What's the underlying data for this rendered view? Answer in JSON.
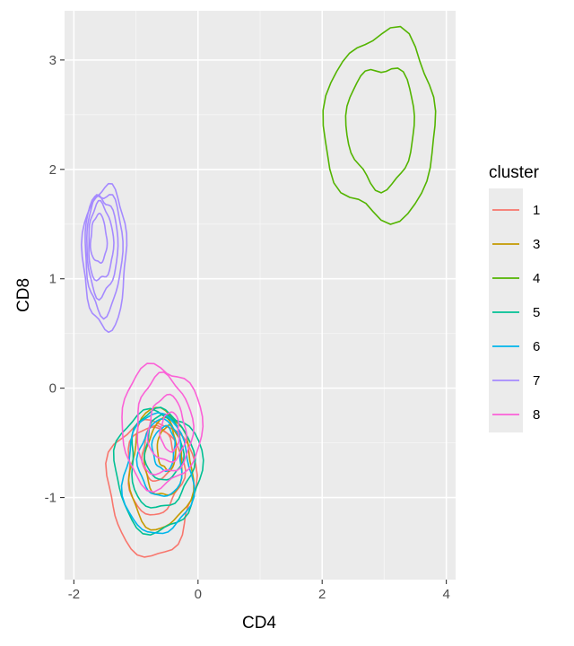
{
  "chart_data": {
    "type": "density2d",
    "title": "",
    "xlabel": "CD4",
    "ylabel": "CD8",
    "xlim": [
      -2.15,
      4.15
    ],
    "ylim": [
      -1.75,
      3.45
    ],
    "xticks": [
      -2,
      0,
      2,
      4
    ],
    "yticks": [
      -1,
      0,
      1,
      2,
      3
    ],
    "grid": true,
    "background": "#ebebeb",
    "legend": {
      "title": "cluster",
      "placement": "right",
      "entries": [
        "1",
        "3",
        "4",
        "5",
        "6",
        "7",
        "8"
      ]
    },
    "series": [
      {
        "name": "1",
        "color": "#F8766D",
        "center": [
          -0.7,
          -0.75
        ],
        "levels": [
          {
            "cx": -0.75,
            "cy": -0.9,
            "rx": 0.7,
            "ry": 0.62
          },
          {
            "cx": -0.7,
            "cy": -0.75,
            "rx": 0.45,
            "ry": 0.4
          },
          {
            "cx": -0.65,
            "cy": -0.6,
            "rx": 0.25,
            "ry": 0.25
          }
        ]
      },
      {
        "name": "3",
        "color": "#C49A00",
        "center": [
          -0.6,
          -0.65
        ],
        "levels": [
          {
            "cx": -0.6,
            "cy": -0.75,
            "rx": 0.5,
            "ry": 0.55
          },
          {
            "cx": -0.55,
            "cy": -0.65,
            "rx": 0.3,
            "ry": 0.35
          },
          {
            "cx": -0.5,
            "cy": -0.55,
            "rx": 0.15,
            "ry": 0.2
          }
        ]
      },
      {
        "name": "4",
        "color": "#53B400",
        "center": [
          2.95,
          2.55
        ],
        "levels": [
          {
            "cx": 2.95,
            "cy": 2.4,
            "rx": 0.9,
            "ry": 0.85
          },
          {
            "cx": 2.95,
            "cy": 2.4,
            "rx": 0.55,
            "ry": 0.55
          }
        ]
      },
      {
        "name": "5",
        "color": "#00C094",
        "center": [
          -0.6,
          -0.55
        ],
        "levels": [
          {
            "cx": -0.65,
            "cy": -0.75,
            "rx": 0.7,
            "ry": 0.55
          },
          {
            "cx": -0.6,
            "cy": -0.65,
            "rx": 0.5,
            "ry": 0.45
          },
          {
            "cx": -0.55,
            "cy": -0.55,
            "rx": 0.3,
            "ry": 0.3
          }
        ]
      },
      {
        "name": "6",
        "color": "#00B6EB",
        "center": [
          -0.65,
          -0.6
        ],
        "levels": [
          {
            "cx": -0.65,
            "cy": -0.8,
            "rx": 0.55,
            "ry": 0.55
          },
          {
            "cx": -0.6,
            "cy": -0.65,
            "rx": 0.35,
            "ry": 0.35
          },
          {
            "cx": -0.55,
            "cy": -0.55,
            "rx": 0.18,
            "ry": 0.2
          }
        ]
      },
      {
        "name": "7",
        "color": "#A58AFF",
        "center": [
          -1.6,
          1.3
        ],
        "levels": [
          {
            "cx": -1.5,
            "cy": 1.2,
            "rx": 0.35,
            "ry": 0.65
          },
          {
            "cx": -1.52,
            "cy": 1.25,
            "rx": 0.3,
            "ry": 0.55
          },
          {
            "cx": -1.55,
            "cy": 1.3,
            "rx": 0.25,
            "ry": 0.45
          },
          {
            "cx": -1.57,
            "cy": 1.33,
            "rx": 0.2,
            "ry": 0.35
          },
          {
            "cx": -1.6,
            "cy": 1.36,
            "rx": 0.13,
            "ry": 0.22
          }
        ]
      },
      {
        "name": "8",
        "color": "#FB61D7",
        "center": [
          -0.55,
          -0.4
        ],
        "levels": [
          {
            "cx": -0.6,
            "cy": -0.35,
            "rx": 0.65,
            "ry": 0.55
          },
          {
            "cx": -0.55,
            "cy": -0.35,
            "rx": 0.45,
            "ry": 0.45
          },
          {
            "cx": -0.5,
            "cy": -0.38,
            "rx": 0.3,
            "ry": 0.3
          },
          {
            "cx": -0.45,
            "cy": -0.4,
            "rx": 0.15,
            "ry": 0.18
          }
        ]
      }
    ]
  }
}
